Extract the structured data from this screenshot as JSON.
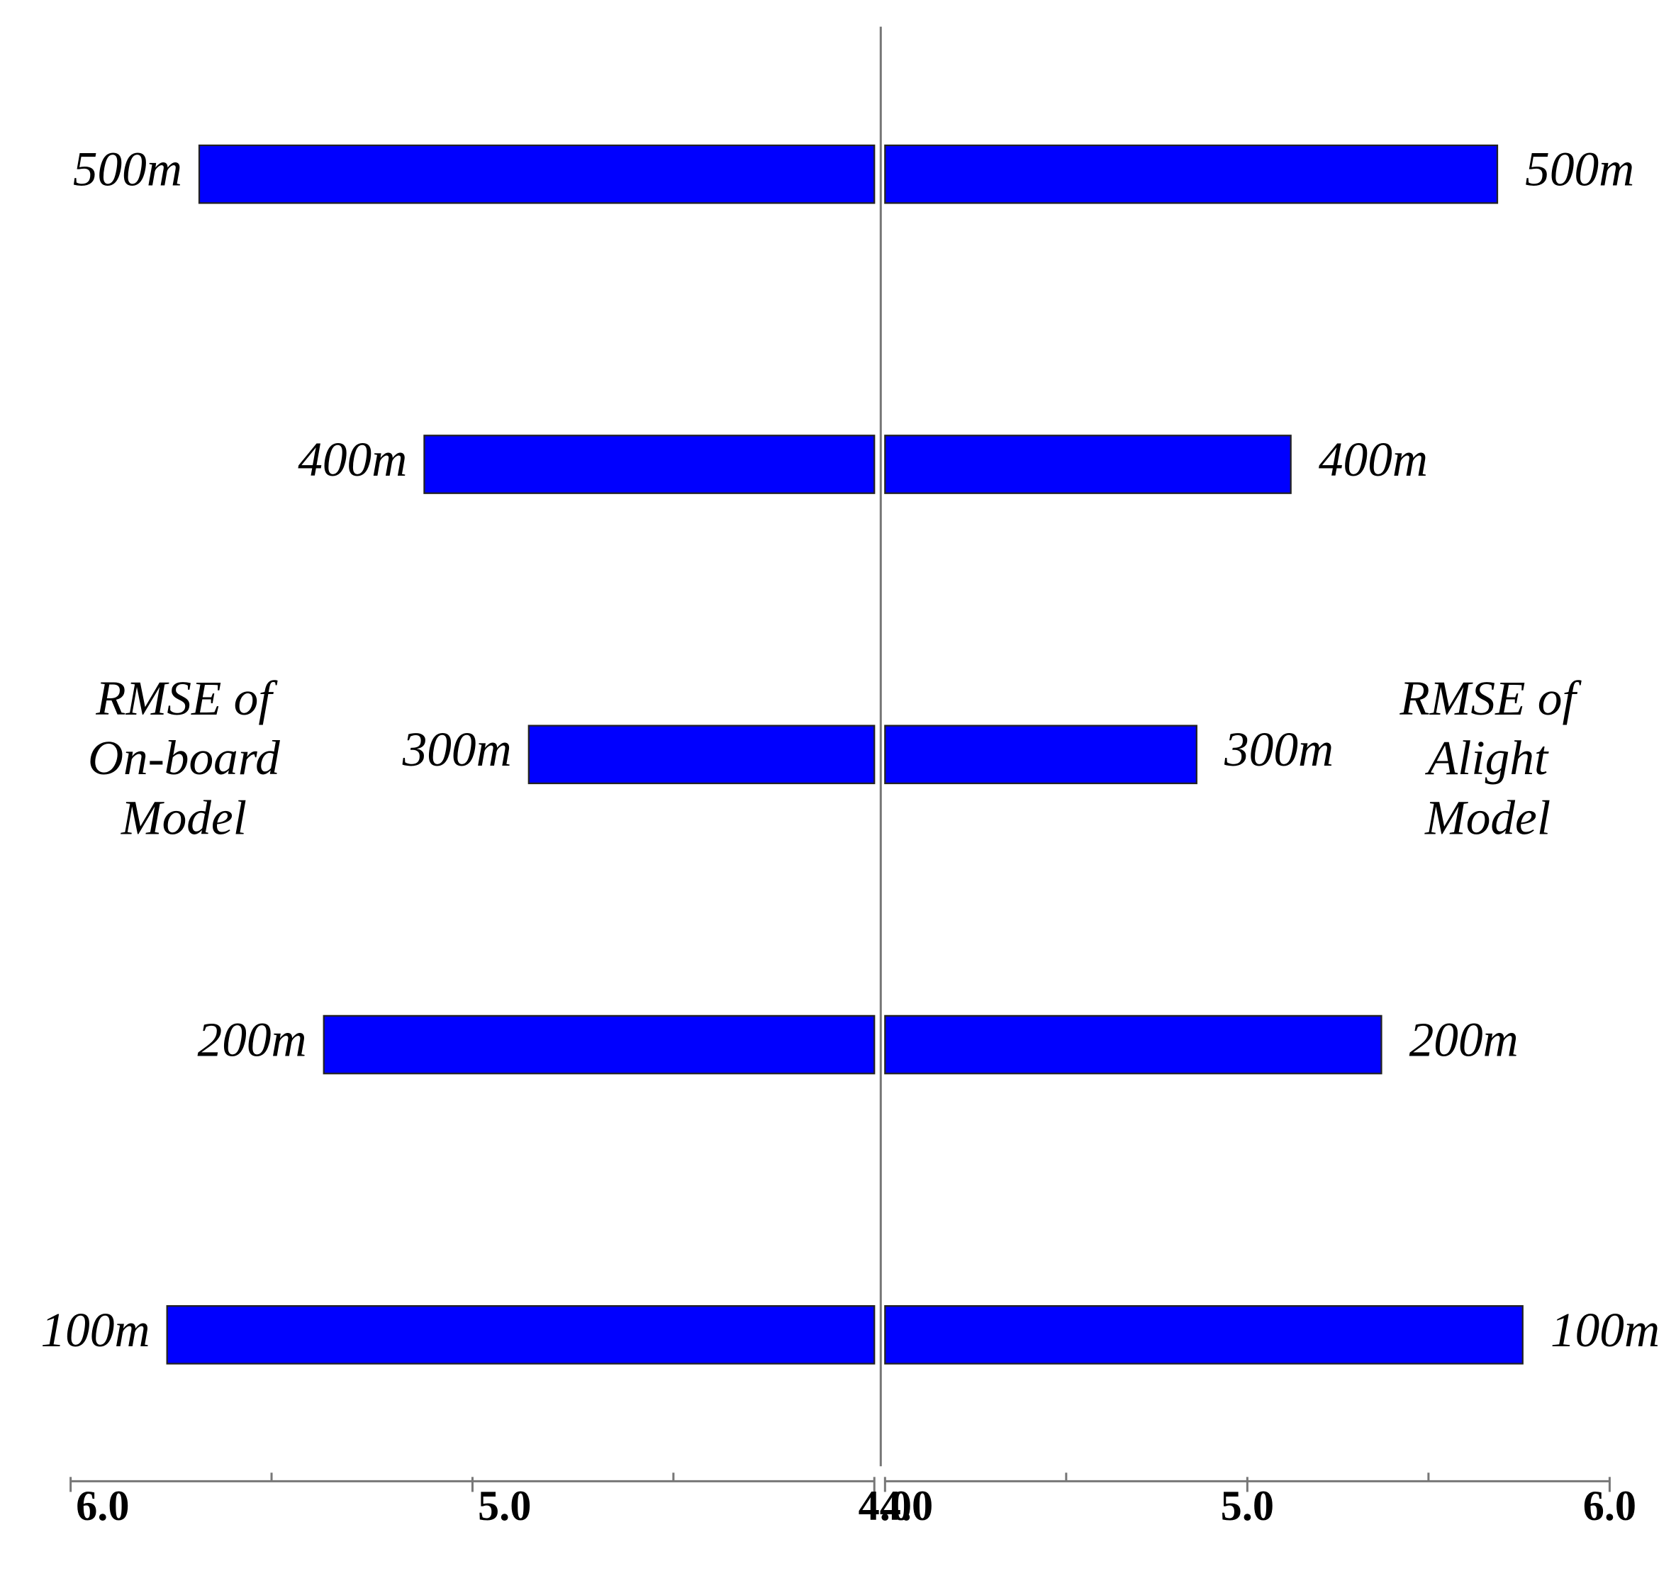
{
  "chart_data": [
    {
      "type": "bar",
      "horizontal": true,
      "direction": "left",
      "categories": [
        "100m",
        "200m",
        "300m",
        "400m",
        "500m"
      ],
      "values": [
        5.76,
        5.37,
        4.86,
        5.12,
        5.68
      ],
      "color": "#0000ff",
      "label_lines": [
        "RMSE of",
        "On-board",
        "Model"
      ],
      "xlim": [
        4,
        6
      ],
      "xticks": [
        {
          "value": 4,
          "label": "4.0"
        },
        {
          "value": 5,
          "label": "5.0"
        },
        {
          "value": 6,
          "label": "6.0"
        }
      ],
      "xminorticks": [
        4.5,
        5.5
      ]
    },
    {
      "type": "bar",
      "horizontal": true,
      "direction": "right",
      "categories": [
        "100m",
        "200m",
        "300m",
        "400m",
        "500m"
      ],
      "values": [
        5.76,
        5.37,
        4.86,
        5.12,
        5.69
      ],
      "color": "#0000ff",
      "label_lines": [
        "RMSE of",
        "Alight",
        "Model"
      ],
      "xlim": [
        4,
        6
      ],
      "xticks": [
        {
          "value": 4,
          "label": "4.0"
        },
        {
          "value": 5,
          "label": "5.0"
        },
        {
          "value": 6,
          "label": "6.0"
        }
      ],
      "xminorticks": [
        4.5,
        5.5
      ]
    }
  ]
}
